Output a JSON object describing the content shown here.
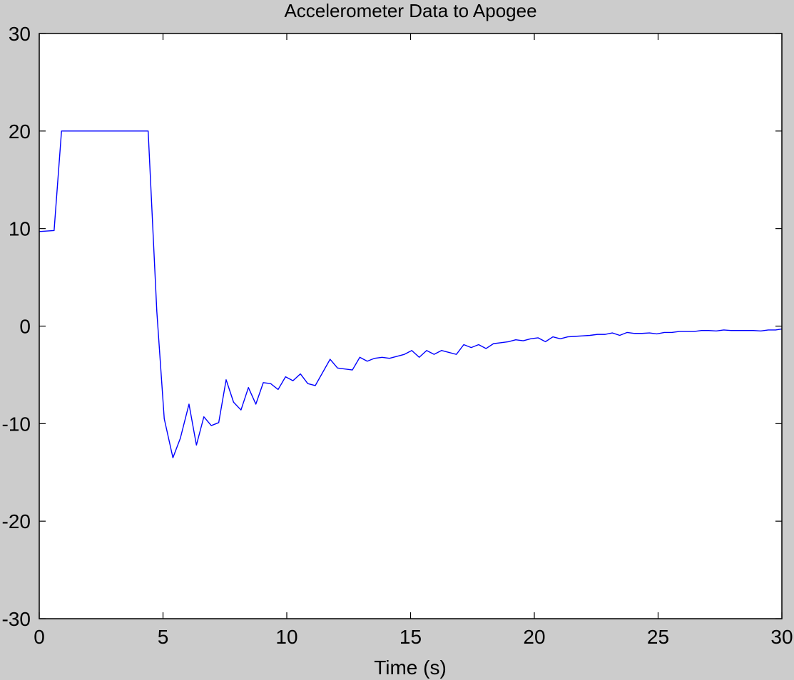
{
  "chart_data": {
    "type": "line",
    "title": "Accelerometer Data to Apogee",
    "xlabel": "Time (s)",
    "ylabel": "",
    "xlim": [
      0,
      30
    ],
    "ylim": [
      -30,
      30
    ],
    "xticks": [
      0,
      5,
      10,
      15,
      20,
      25,
      30
    ],
    "yticks": [
      -30,
      -20,
      -10,
      0,
      10,
      20,
      30
    ],
    "grid": false,
    "series": [
      {
        "color": "#0000ff",
        "x": [
          0,
          0.6,
          0.9,
          1.2,
          4.4,
          4.75,
          5.05,
          5.4,
          5.7,
          6.05,
          6.35,
          6.65,
          6.95,
          7.25,
          7.55,
          7.85,
          8.15,
          8.45,
          8.75,
          9.05,
          9.35,
          9.65,
          9.95,
          10.25,
          10.55,
          10.85,
          11.15,
          11.75,
          12.05,
          12.65,
          12.95,
          13.25,
          13.55,
          13.85,
          14.15,
          14.45,
          14.75,
          15.05,
          15.35,
          15.65,
          15.95,
          16.25,
          16.55,
          16.85,
          17.15,
          17.45,
          17.75,
          18.05,
          18.35,
          18.65,
          18.95,
          19.25,
          19.55,
          19.85,
          20.15,
          20.45,
          20.75,
          21.05,
          21.35,
          21.65,
          21.95,
          22.25,
          22.55,
          22.85,
          23.15,
          23.45,
          23.75,
          24.05,
          24.35,
          24.65,
          24.95,
          25.25,
          25.55,
          25.85,
          26.15,
          26.45,
          26.75,
          27.05,
          27.35,
          27.65,
          27.95,
          28.25,
          28.55,
          28.85,
          29.15,
          29.45,
          29.75,
          30.0
        ],
        "y": [
          9.7,
          9.8,
          20,
          20,
          20,
          1.5,
          -9.5,
          -13.5,
          -11.5,
          -8.0,
          -12.2,
          -9.3,
          -10.2,
          -9.9,
          -5.5,
          -7.8,
          -8.6,
          -6.3,
          -8.0,
          -5.8,
          -5.9,
          -6.5,
          -5.2,
          -5.6,
          -4.9,
          -5.9,
          -6.1,
          -3.4,
          -4.3,
          -4.5,
          -3.2,
          -3.6,
          -3.3,
          -3.2,
          -3.3,
          -3.1,
          -2.9,
          -2.5,
          -3.2,
          -2.5,
          -2.9,
          -2.5,
          -2.7,
          -2.9,
          -1.9,
          -2.2,
          -1.9,
          -2.3,
          -1.8,
          -1.7,
          -1.6,
          -1.4,
          -1.5,
          -1.3,
          -1.2,
          -1.6,
          -1.1,
          -1.3,
          -1.1,
          -1.05,
          -1.0,
          -0.95,
          -0.85,
          -0.85,
          -0.7,
          -0.95,
          -0.65,
          -0.75,
          -0.75,
          -0.7,
          -0.8,
          -0.65,
          -0.65,
          -0.55,
          -0.55,
          -0.55,
          -0.45,
          -0.45,
          -0.5,
          -0.4,
          -0.45,
          -0.45,
          -0.45,
          -0.45,
          -0.5,
          -0.4,
          -0.4,
          -0.3
        ]
      }
    ]
  }
}
